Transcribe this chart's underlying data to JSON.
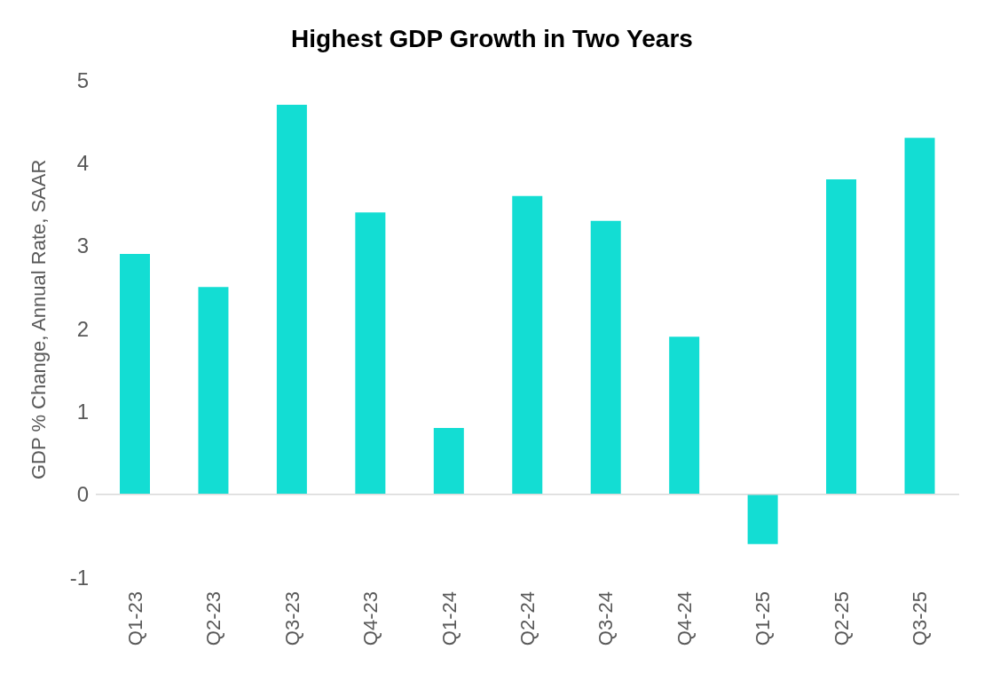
{
  "chart_data": {
    "type": "bar",
    "title": "Highest GDP Growth in Two Years",
    "ylabel": "GDP % Change, Annual Rate, SAAR",
    "categories": [
      "Q1-23",
      "Q2-23",
      "Q3-23",
      "Q4-23",
      "Q1-24",
      "Q2-24",
      "Q3-24",
      "Q4-24",
      "Q1-25",
      "Q2-25",
      "Q3-25"
    ],
    "values": [
      2.9,
      2.5,
      4.7,
      3.4,
      0.8,
      3.6,
      3.3,
      1.9,
      -0.6,
      3.8,
      4.3
    ],
    "color": "#13ddd3",
    "ylim": [
      -1,
      5
    ],
    "yticks": [
      -1,
      0,
      1,
      2,
      3,
      4,
      5
    ],
    "ref_lines": [
      {
        "axis": "y",
        "value": 0,
        "color": "#d9d9d9"
      }
    ]
  }
}
